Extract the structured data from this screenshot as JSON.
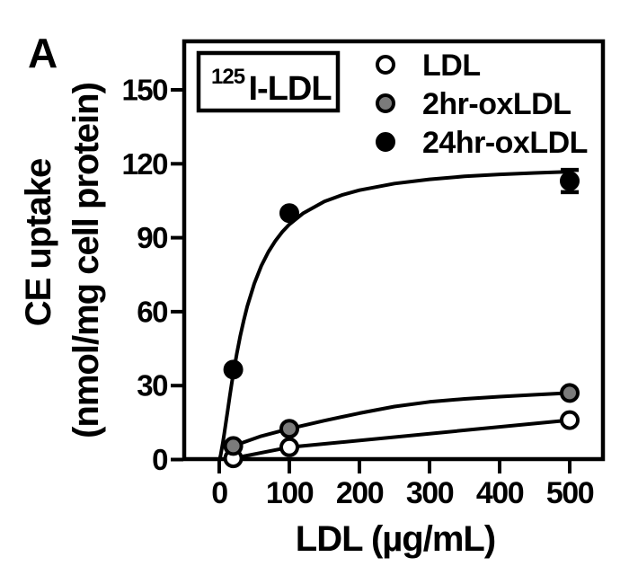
{
  "panel_label": "A",
  "isotope_box": {
    "superscript": "125",
    "label": "I-LDL"
  },
  "axes": {
    "x": {
      "title": "LDL (µg/mL)"
    },
    "y": {
      "title_line1": "CE uptake",
      "title_line2": "(nmol/mg cell protein)"
    }
  },
  "legend": {
    "items": [
      {
        "label": "LDL",
        "marker": "open-circle",
        "marker_fill": "#ffffff"
      },
      {
        "label": "2hr-oxLDL",
        "marker": "gray-circle",
        "marker_fill": "#7b7b7b"
      },
      {
        "label": "24hr-oxLDL",
        "marker": "filled-circle",
        "marker_fill": "#000000"
      }
    ]
  },
  "colors": {
    "ink": "#000000",
    "gray_fill": "#7b7b7b",
    "background": "#ffffff"
  },
  "chart_data": {
    "type": "scatter",
    "title": "",
    "xlabel": "LDL (µg/mL)",
    "ylabel": "CE uptake (nmol/mg cell protein)",
    "xlim": [
      0,
      550
    ],
    "ylim": [
      0,
      171
    ],
    "x_ticks": [
      0,
      100,
      200,
      300,
      400,
      500
    ],
    "y_ticks": [
      0,
      30,
      60,
      90,
      120,
      150
    ],
    "grid": false,
    "legend_position": "top-right-inside",
    "series": [
      {
        "name": "LDL",
        "marker": "open-circle",
        "marker_fill": "#ffffff",
        "points": [
          [
            20,
            0.5
          ],
          [
            100,
            5
          ],
          [
            500,
            16
          ]
        ],
        "fit_curve": [
          [
            20,
            0.5
          ],
          [
            100,
            5
          ],
          [
            500,
            16
          ]
        ]
      },
      {
        "name": "2hr-oxLDL",
        "marker": "gray-circle",
        "marker_fill": "#7b7b7b",
        "points": [
          [
            20,
            5.5
          ],
          [
            100,
            12.5
          ],
          [
            500,
            27
          ]
        ],
        "fit_curve": [
          [
            20,
            5.5
          ],
          [
            60,
            9.5
          ],
          [
            100,
            12.5
          ],
          [
            150,
            15.8
          ],
          [
            200,
            18.8
          ],
          [
            250,
            21.5
          ],
          [
            300,
            23.4
          ],
          [
            350,
            24.6
          ],
          [
            400,
            25.5
          ],
          [
            450,
            26.3
          ],
          [
            500,
            27
          ]
        ]
      },
      {
        "name": "24hr-oxLDL",
        "marker": "filled-circle",
        "marker_fill": "#000000",
        "points": [
          [
            20,
            36.5
          ],
          [
            100,
            100
          ],
          [
            500,
            113
          ]
        ],
        "error_bars": [
          {
            "x": 500,
            "y": 113,
            "plus": 4.5,
            "minus": 4.5
          }
        ],
        "fit_curve": [
          [
            1,
            0.7
          ],
          [
            2,
            1.9
          ],
          [
            3,
            3.3
          ],
          [
            5,
            6.6
          ],
          [
            7,
            10.3
          ],
          [
            10,
            16.0
          ],
          [
            12,
            19.9
          ],
          [
            15,
            25.7
          ],
          [
            18,
            31.2
          ],
          [
            20,
            34.7
          ],
          [
            25,
            42.9
          ],
          [
            30,
            50.2
          ],
          [
            35,
            56.5
          ],
          [
            40,
            62.2
          ],
          [
            50,
            71.4
          ],
          [
            60,
            78.6
          ],
          [
            70,
            84.2
          ],
          [
            80,
            88.7
          ],
          [
            90,
            92.4
          ],
          [
            100,
            95.4
          ],
          [
            120,
            100.0
          ],
          [
            150,
            104.7
          ],
          [
            175,
            107.3
          ],
          [
            200,
            109.3
          ],
          [
            250,
            112.0
          ],
          [
            300,
            113.7
          ],
          [
            350,
            114.9
          ],
          [
            400,
            115.7
          ],
          [
            450,
            116.3
          ],
          [
            500,
            116.8
          ]
        ]
      }
    ]
  }
}
